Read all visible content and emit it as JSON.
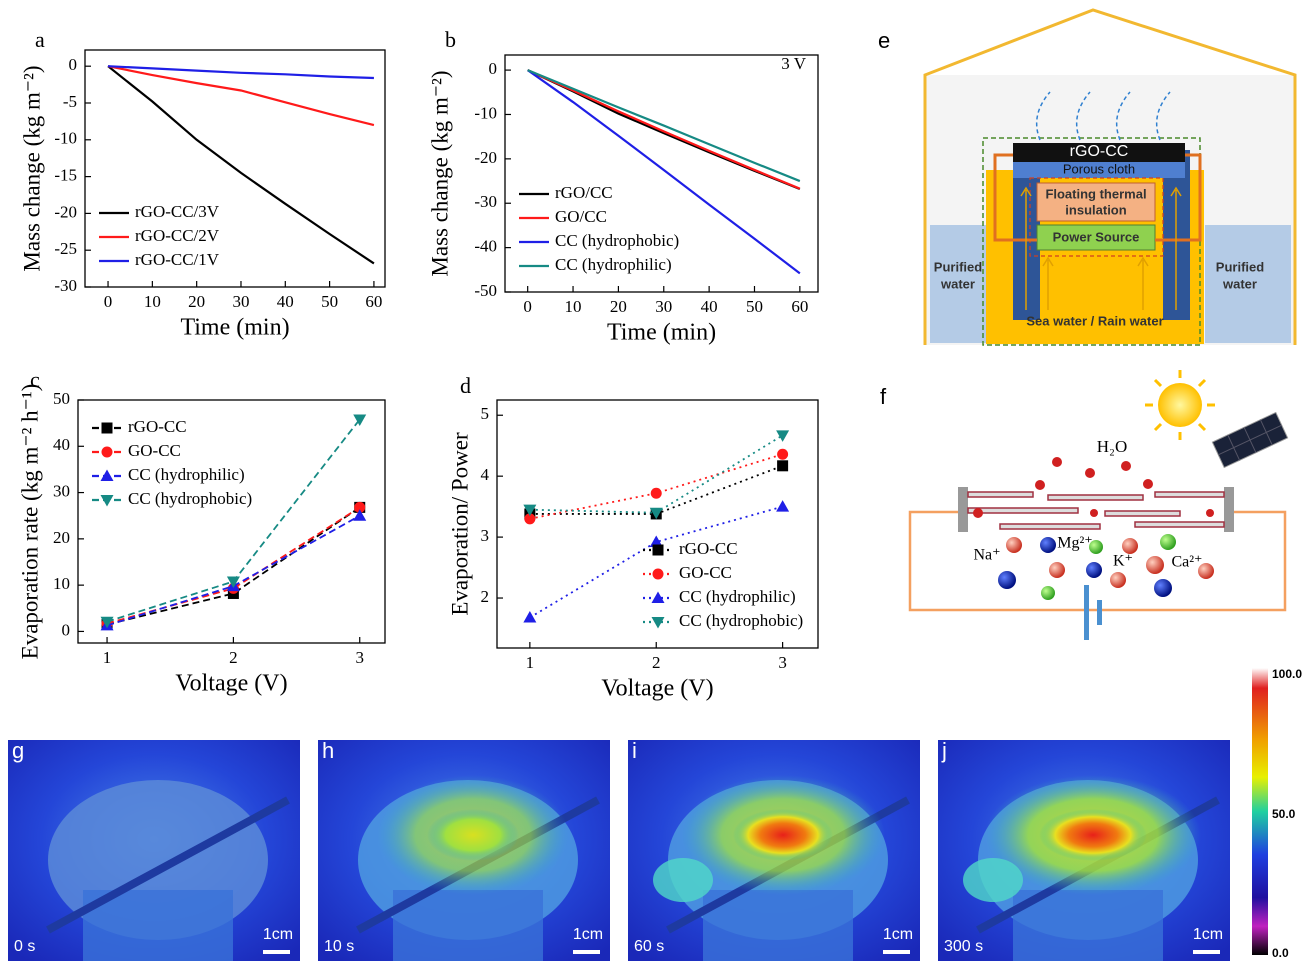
{
  "chart_data": [
    {
      "type": "line",
      "panel_label": "a",
      "xlabel": "Time (min)",
      "ylabel": "Mass change (kg m⁻²)",
      "x": [
        0,
        10,
        20,
        30,
        40,
        50,
        60
      ],
      "xlim": [
        -5.2,
        62.5
      ],
      "xticks": [
        0,
        10,
        20,
        30,
        40,
        50,
        60
      ],
      "ylim": [
        -30,
        2.2
      ],
      "yticks": [
        0,
        -5,
        -10,
        -15,
        -20,
        -25,
        -30
      ],
      "legend": "lower left",
      "line_style": "solid",
      "series": [
        {
          "name": "rGO-CC/3V",
          "color": "#000000",
          "values": [
            0,
            -4.8,
            -10,
            -14.5,
            -18.7,
            -22.8,
            -26.8
          ]
        },
        {
          "name": "rGO-CC/2V",
          "color": "#ff1a1a",
          "values": [
            0,
            -1.2,
            -2.3,
            -3.3,
            -4.9,
            -6.5,
            -8
          ]
        },
        {
          "name": "rGO-CC/1V",
          "color": "#1f1fe6",
          "values": [
            0,
            -0.3,
            -0.6,
            -0.9,
            -1.1,
            -1.4,
            -1.6
          ]
        }
      ]
    },
    {
      "type": "line",
      "panel_label": "b",
      "annotation": "3 V",
      "xlabel": "Time (min)",
      "ylabel": "Mass change (kg m⁻²)",
      "x": [
        0,
        10,
        20,
        30,
        40,
        50,
        60
      ],
      "xlim": [
        -5,
        64
      ],
      "xticks": [
        0,
        10,
        20,
        30,
        40,
        50,
        60
      ],
      "ylim": [
        -50,
        3.4
      ],
      "yticks": [
        0,
        -10,
        -20,
        -30,
        -40,
        -50
      ],
      "legend": "lower left",
      "line_style": "solid",
      "series": [
        {
          "name": "rGO/CC",
          "color": "#000000",
          "values": [
            0,
            -4.8,
            -9.8,
            -14.2,
            -18.5,
            -22.7,
            -26.8
          ]
        },
        {
          "name": "GO/CC",
          "color": "#ff1a1a",
          "values": [
            0,
            -4.6,
            -9.3,
            -13.8,
            -18.2,
            -22.5,
            -26.7
          ]
        },
        {
          "name": "CC (hydrophobic)",
          "color": "#1f1fe6",
          "values": [
            0,
            -7.2,
            -14.8,
            -22.5,
            -30.3,
            -38,
            -45.8
          ]
        },
        {
          "name": "CC (hydrophilic)",
          "color": "#168a84",
          "values": [
            0,
            -4.2,
            -8.4,
            -12.5,
            -16.7,
            -20.9,
            -25
          ]
        }
      ]
    },
    {
      "type": "line",
      "panel_label": "c",
      "xlabel": "Voltage (V)",
      "ylabel": "Evaporation rate (kg m⁻² h⁻¹)",
      "x": [
        1,
        2,
        3
      ],
      "xlim": [
        0.77,
        3.2
      ],
      "xticks": [
        1,
        2,
        3
      ],
      "ylim": [
        -2.5,
        50
      ],
      "yticks": [
        0,
        10,
        20,
        30,
        40,
        50
      ],
      "legend": "upper left",
      "line_style": "dashed",
      "series": [
        {
          "name": "rGO-CC",
          "color": "#000000",
          "marker": "square",
          "values": [
            1.5,
            8.2,
            26.8
          ]
        },
        {
          "name": "GO-CC",
          "color": "#ff1a1a",
          "marker": "circle",
          "values": [
            1.7,
            9.3,
            26.8
          ]
        },
        {
          "name": "CC (hydrophilic)",
          "color": "#1f1fe6",
          "marker": "triangle-up",
          "values": [
            1.3,
            9.8,
            25
          ]
        },
        {
          "name": "CC (hydrophobic)",
          "color": "#168a84",
          "marker": "triangle-down",
          "values": [
            2.1,
            10.8,
            45.8
          ]
        }
      ]
    },
    {
      "type": "line",
      "panel_label": "d",
      "xlabel": "Voltage (V)",
      "ylabel": "Evaporation/ Power",
      "x": [
        1,
        2,
        3
      ],
      "xlim": [
        0.74,
        3.28
      ],
      "xticks": [
        1,
        2,
        3
      ],
      "ylim": [
        1.18,
        5.25
      ],
      "yticks": [
        2,
        3,
        4,
        5
      ],
      "legend": "lower right",
      "line_style": "dotted",
      "series": [
        {
          "name": "rGO-CC",
          "color": "#000000",
          "marker": "square",
          "values": [
            3.38,
            3.38,
            4.17
          ]
        },
        {
          "name": "GO-CC",
          "color": "#ff1a1a",
          "marker": "circle",
          "values": [
            3.3,
            3.72,
            4.36
          ]
        },
        {
          "name": "CC (hydrophilic)",
          "color": "#1f1fe6",
          "marker": "triangle-up",
          "values": [
            1.68,
            2.92,
            3.5
          ]
        },
        {
          "name": "CC (hydrophobic)",
          "color": "#168a84",
          "marker": "triangle-down",
          "values": [
            3.45,
            3.4,
            4.67
          ]
        }
      ]
    }
  ],
  "diagram_e": {
    "panel_label": "e",
    "top_layer": "rGO-CC",
    "cloth": "Porous cloth",
    "insulation": [
      "Floating thermal",
      "insulation"
    ],
    "power": "Power Source",
    "purified_left": [
      "Purified",
      "water"
    ],
    "purified_right": [
      "Purified",
      "water"
    ],
    "source": "Sea water / Rain water"
  },
  "diagram_f": {
    "panel_label": "f",
    "water": "H₂O",
    "ions": [
      "Na⁺",
      "Mg²⁺",
      "K⁺",
      "Ca²⁺"
    ]
  },
  "thermal_images": [
    {
      "panel_label": "g",
      "time": "0 s",
      "scale": "1cm"
    },
    {
      "panel_label": "h",
      "time": "10 s",
      "scale": "1cm"
    },
    {
      "panel_label": "i",
      "time": "60 s",
      "scale": "1cm"
    },
    {
      "panel_label": "j",
      "time": "300 s",
      "scale": "1cm"
    }
  ],
  "colorbar": {
    "ticks": [
      "100.0",
      "50.0",
      "0.0"
    ]
  }
}
